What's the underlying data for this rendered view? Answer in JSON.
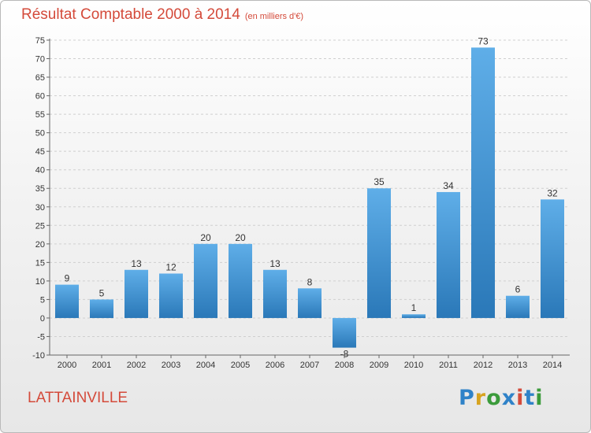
{
  "title": "Résultat Comptable 2000 à 2014",
  "subtitle": "(en milliers d'€)",
  "commune": "LATTAINVILLE",
  "logo": {
    "text": "Proxiti",
    "colors": [
      "#2f82c8",
      "#d7a320",
      "#3b9b3b",
      "#2f82c8",
      "#d44a3a",
      "#2f82c8",
      "#3b9b3b"
    ]
  },
  "colors": {
    "bar_top": "#5faee8",
    "bar_bottom": "#2a78b8",
    "title": "#d44a3a"
  },
  "chart_data": {
    "type": "bar",
    "categories": [
      "2000",
      "2001",
      "2002",
      "2003",
      "2004",
      "2005",
      "2006",
      "2007",
      "2008",
      "2009",
      "2010",
      "2011",
      "2012",
      "2013",
      "2014"
    ],
    "values": [
      9,
      5,
      13,
      12,
      20,
      20,
      13,
      8,
      -8,
      35,
      1,
      34,
      73,
      6,
      32
    ],
    "ylim": [
      -10,
      75
    ],
    "yticks": [
      -10,
      -5,
      0,
      5,
      10,
      15,
      20,
      25,
      30,
      35,
      40,
      45,
      50,
      55,
      60,
      65,
      70,
      75
    ],
    "grid": true,
    "xlabel": "",
    "ylabel": ""
  }
}
